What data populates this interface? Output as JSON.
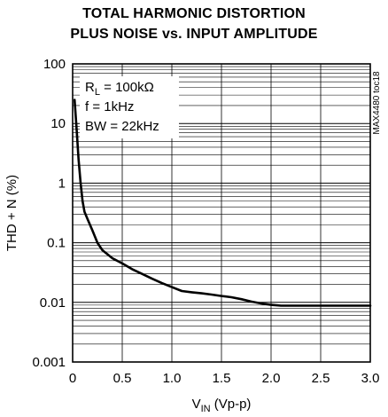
{
  "chart_data": {
    "type": "line",
    "title": [
      "TOTAL HARMONIC DISTORTION",
      "PLUS NOISE vs. INPUT AMPLITUDE"
    ],
    "xlabel": {
      "main": "V",
      "sub": "IN",
      "unit": " (Vp-p)"
    },
    "ylabel": "THD + N (%)",
    "side_label": "MAX4480 toc18",
    "x_scale": "linear",
    "y_scale": "log",
    "xlim": [
      0,
      3.0
    ],
    "ylim": [
      0.001,
      100
    ],
    "x_ticks": [
      "0",
      "0.5",
      "1.0",
      "1.5",
      "2.0",
      "2.5",
      "3.0"
    ],
    "y_ticks": [
      "0.001",
      "0.01",
      "0.1",
      "1",
      "10",
      "100"
    ],
    "grid": true,
    "annotations": [
      {
        "main": "R",
        "sub": "L",
        "rest": " = 100kΩ"
      },
      {
        "main": "f = 1kHz",
        "sub": "",
        "rest": ""
      },
      {
        "main": "BW = 22kHz",
        "sub": "",
        "rest": ""
      }
    ],
    "series": [
      {
        "x": [
          0.02,
          0.04,
          0.06,
          0.08,
          0.1,
          0.12,
          0.15,
          0.2,
          0.25,
          0.3,
          0.4,
          0.5,
          0.6,
          0.7,
          0.8,
          0.9,
          1.0,
          1.1,
          1.2,
          1.3,
          1.4,
          1.5,
          1.6,
          1.7,
          1.8,
          1.9,
          2.0,
          2.1,
          2.2,
          2.4,
          2.6,
          2.8,
          3.0
        ],
        "y": [
          25,
          8,
          2.5,
          1.0,
          0.5,
          0.33,
          0.25,
          0.16,
          0.1,
          0.075,
          0.055,
          0.045,
          0.036,
          0.03,
          0.025,
          0.021,
          0.018,
          0.0155,
          0.0148,
          0.0142,
          0.0135,
          0.0128,
          0.0122,
          0.0113,
          0.0103,
          0.0096,
          0.0091,
          0.0088,
          0.0088,
          0.0088,
          0.0088,
          0.0088,
          0.0088
        ]
      }
    ]
  }
}
